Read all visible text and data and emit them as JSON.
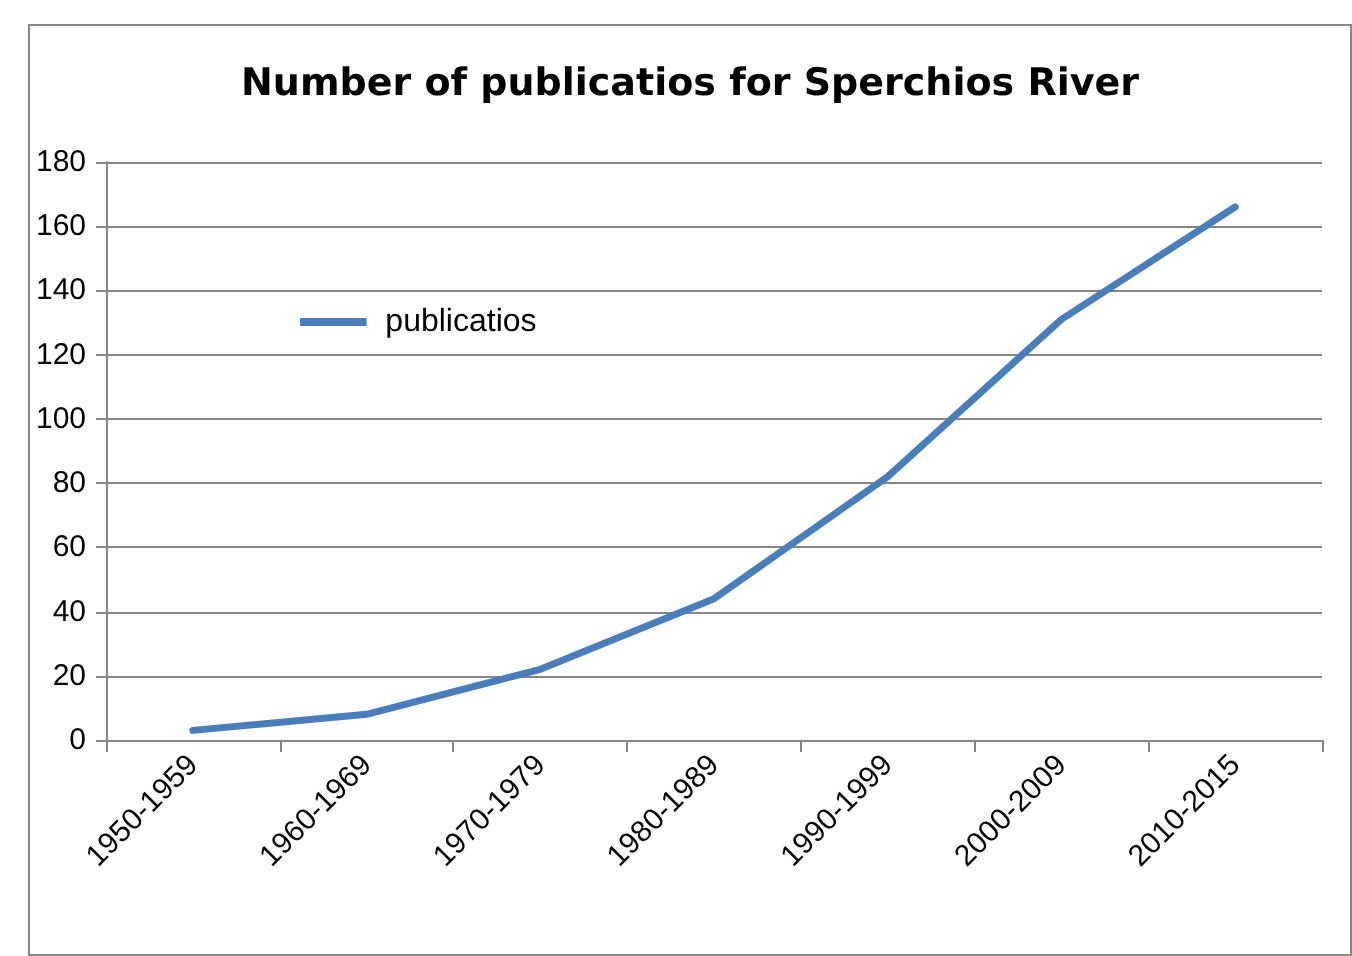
{
  "chart_data": {
    "type": "line",
    "title": "Number of publicatios for Sperchios River",
    "categories": [
      "1950-1959",
      "1960-1969",
      "1970-1979",
      "1980-1989",
      "1990-1999",
      "2000-2009",
      "2010-2015"
    ],
    "series": [
      {
        "name": "publicatios",
        "color": "#4a7ebb",
        "values": [
          3,
          8,
          22,
          44,
          82,
          131,
          166
        ]
      }
    ],
    "ylim": [
      0,
      180
    ],
    "yticks": [
      0,
      20,
      40,
      60,
      80,
      100,
      120,
      140,
      160,
      180
    ],
    "grid": "y",
    "legend": "top left",
    "marker": "none",
    "line_style": "solid"
  }
}
